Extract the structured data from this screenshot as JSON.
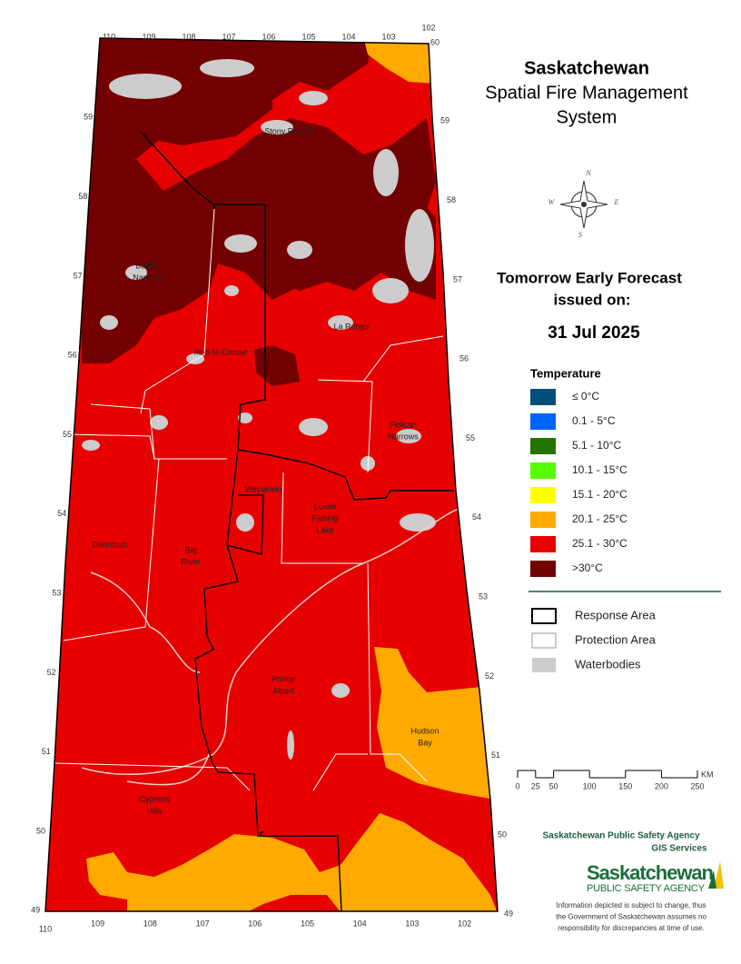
{
  "title": "Saskatchewan",
  "subtitle": [
    "Spatial Fire Management",
    "System"
  ],
  "forecast": {
    "heading": "Tomorrow Early Forecast",
    "issued": "issued on:",
    "date": "31 Jul 2025"
  },
  "temperature_legend": {
    "title": "Temperature",
    "items": [
      {
        "label": "≤ 0°C",
        "color": "#00507a"
      },
      {
        "label": "0.1 - 5°C",
        "color": "#0064ff"
      },
      {
        "label": "5.1 - 10°C",
        "color": "#267300"
      },
      {
        "label": "10.1 - 15°C",
        "color": "#55ff00"
      },
      {
        "label": "15.1 - 20°C",
        "color": "#ffff00"
      },
      {
        "label": "20.1 - 25°C",
        "color": "#ffaa00"
      },
      {
        "label": "25.1 - 30°C",
        "color": "#e60000"
      },
      {
        "label": ">30°C",
        "color": "#730000"
      }
    ]
  },
  "boundary_legend": [
    {
      "label": "Response Area",
      "color": "#000000"
    },
    {
      "label": "Protection Area",
      "color": "#ffffff"
    },
    {
      "label": "Waterbodies",
      "color": "#cccccc"
    }
  ],
  "scale_bar": {
    "ticks": [
      0,
      25,
      50,
      100,
      150,
      200,
      250
    ],
    "unit": "KM"
  },
  "longitudes_top": [
    110,
    109,
    108,
    107,
    106,
    105,
    104,
    103,
    102
  ],
  "longitudes_bottom": [
    110,
    109,
    108,
    107,
    106,
    105,
    104,
    103,
    102
  ],
  "top_corner_latitude": 60,
  "latitudes_left": [
    59,
    58,
    57,
    56,
    55,
    54,
    53,
    52,
    51,
    50,
    49
  ],
  "latitudes_right": [
    59,
    58,
    57,
    56,
    55,
    54,
    53,
    52,
    51,
    50,
    49
  ],
  "places": [
    [
      "Stony Rapids"
    ],
    [
      "Buffalo",
      "Narrows"
    ],
    [
      "Ile-a-la-Crosse"
    ],
    [
      "La Ronge"
    ],
    [
      "Pelican",
      "Narrows"
    ],
    [
      "Weyakwin"
    ],
    [
      "Lower",
      "Fishing",
      "Lake"
    ],
    [
      "Dorintosh"
    ],
    [
      "Big",
      "River"
    ],
    [
      "Prince",
      "Albert"
    ],
    [
      "Hudson",
      "Bay"
    ],
    [
      "Cypress",
      "Hills"
    ]
  ],
  "agency": {
    "name": "Saskatchewan Public Safety Agency",
    "unit": "GIS  Services",
    "logo": "Saskatchewan",
    "logo_sub": "PUBLIC SAFETY AGENCY"
  },
  "compass": [
    "N",
    "E",
    "S",
    "W"
  ],
  "disclaimer": [
    "Information depicted is subject to change, thus",
    "the Government of Saskatchewan assumes no",
    "responsibility for discrepancies at time of use."
  ]
}
